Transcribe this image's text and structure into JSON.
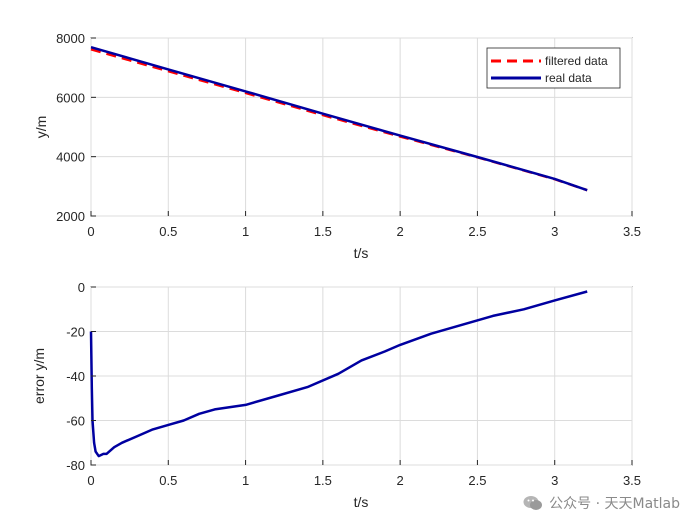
{
  "chart_data": [
    {
      "type": "line",
      "xlabel": "t/s",
      "ylabel": "y/m",
      "xlim": [
        0,
        3.5
      ],
      "ylim": [
        2000,
        8000
      ],
      "xticks": [
        "0",
        "0.5",
        "1",
        "1.5",
        "2",
        "2.5",
        "3",
        "3.5"
      ],
      "yticks": [
        "2000",
        "4000",
        "6000",
        "8000"
      ],
      "grid": true,
      "legend_position": "top-right",
      "series": [
        {
          "name": "filtered data",
          "color": "#ff0000",
          "style": "dashed",
          "points": [
            [
              0,
              7620
            ],
            [
              0.5,
              6880
            ],
            [
              1,
              6150
            ],
            [
              1.5,
              5400
            ],
            [
              2,
              4680
            ],
            [
              2.5,
              3980
            ],
            [
              3,
              3240
            ],
            [
              3.21,
              2870
            ]
          ]
        },
        {
          "name": "real data",
          "color": "#0000a0",
          "style": "solid",
          "points": [
            [
              0,
              7690
            ],
            [
              0.5,
              6940
            ],
            [
              1,
              6200
            ],
            [
              1.5,
              5450
            ],
            [
              2,
              4710
            ],
            [
              2.5,
              3990
            ],
            [
              3,
              3250
            ],
            [
              3.21,
              2870
            ]
          ]
        }
      ]
    },
    {
      "type": "line",
      "xlabel": "t/s",
      "ylabel": "error y/m",
      "xlim": [
        0,
        3.5
      ],
      "ylim": [
        -80,
        0
      ],
      "xticks": [
        "0",
        "0.5",
        "1",
        "1.5",
        "2",
        "2.5",
        "3",
        "3.5"
      ],
      "yticks": [
        "-80",
        "-60",
        "-40",
        "-20",
        "0"
      ],
      "grid": true,
      "series": [
        {
          "color": "#0000a0",
          "style": "solid",
          "points": [
            [
              0,
              -20
            ],
            [
              0.005,
              -45
            ],
            [
              0.01,
              -60
            ],
            [
              0.02,
              -70
            ],
            [
              0.03,
              -74
            ],
            [
              0.05,
              -76
            ],
            [
              0.08,
              -75
            ],
            [
              0.1,
              -75
            ],
            [
              0.15,
              -72
            ],
            [
              0.2,
              -70
            ],
            [
              0.3,
              -67
            ],
            [
              0.4,
              -64
            ],
            [
              0.5,
              -62
            ],
            [
              0.6,
              -60
            ],
            [
              0.7,
              -57
            ],
            [
              0.8,
              -55
            ],
            [
              1.0,
              -53
            ],
            [
              1.2,
              -49
            ],
            [
              1.4,
              -45
            ],
            [
              1.6,
              -39
            ],
            [
              1.75,
              -33
            ],
            [
              1.9,
              -29
            ],
            [
              2.0,
              -26
            ],
            [
              2.2,
              -21
            ],
            [
              2.4,
              -17
            ],
            [
              2.6,
              -13
            ],
            [
              2.8,
              -10
            ],
            [
              3.0,
              -6
            ],
            [
              3.21,
              -2
            ]
          ]
        }
      ]
    }
  ],
  "watermark": {
    "text": "公众号 · 天天Matlab",
    "icon": "wechat-icon",
    "color": "#8a8a8a"
  }
}
